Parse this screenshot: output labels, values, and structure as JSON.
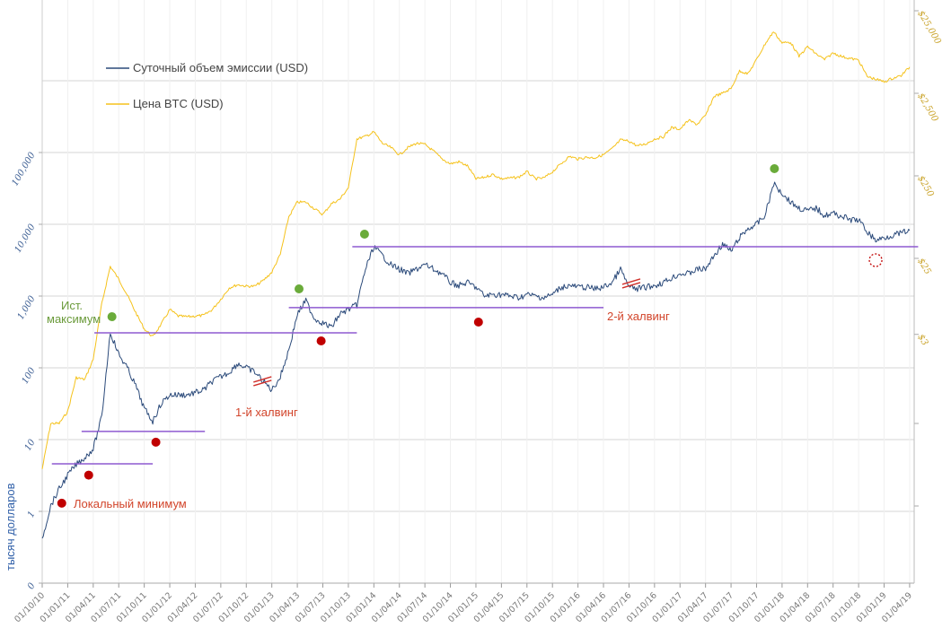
{
  "chart_data": {
    "type": "line",
    "title": "",
    "ylabel": "тысяч долларов",
    "y_left_scale": "log",
    "y_right_scale": "log",
    "y_left_ticks": [
      {
        "value": 0.1,
        "label": "0"
      },
      {
        "value": 1,
        "label": "1"
      },
      {
        "value": 10,
        "label": "10"
      },
      {
        "value": 100,
        "label": "100"
      },
      {
        "value": 1000,
        "label": "1,000"
      },
      {
        "value": 10000,
        "label": "10,000"
      },
      {
        "value": 100000,
        "label": "100,000"
      }
    ],
    "y_right_ticks": [
      {
        "value": 25000,
        "label": "$25,000"
      },
      {
        "value": 2500,
        "label": "$2,500"
      },
      {
        "value": 250,
        "label": "$250"
      },
      {
        "value": 25,
        "label": "$25"
      },
      {
        "value": 3,
        "label": "$3"
      },
      {
        "value": 0.25,
        "label": ""
      },
      {
        "value": 0.025,
        "label": ""
      }
    ],
    "x_ticks": [
      "01/10/10",
      "01/01/11",
      "01/04/11",
      "01/07/11",
      "01/10/11",
      "01/01/12",
      "01/04/12",
      "01/07/12",
      "01/10/12",
      "01/01/13",
      "01/04/13",
      "01/07/13",
      "01/10/13",
      "01/01/14",
      "01/04/14",
      "01/07/14",
      "01/10/14",
      "01/01/15",
      "01/04/15",
      "01/07/15",
      "01/10/15",
      "01/01/16",
      "01/04/16",
      "01/07/16",
      "01/10/16",
      "01/01/17",
      "01/04/17",
      "01/07/17",
      "01/10/17",
      "01/01/18",
      "01/04/18",
      "01/07/18",
      "01/10/18",
      "01/01/19",
      "01/04/19"
    ],
    "x_start": "2010-10",
    "legend": {
      "placement": "top-left",
      "items": [
        {
          "name": "Суточный объем эмиссии (USD)",
          "color": "#2b4a7a"
        },
        {
          "name": "Цена BTC (USD)",
          "color": "#f5c21b"
        }
      ]
    },
    "series": [
      {
        "name": "Суточный объем эмиссии (USD)",
        "axis": "left",
        "unit": "thousand USD",
        "color": "#2b4a7a",
        "values": [
          0.42,
          1.2,
          2.05,
          3.2,
          4.5,
          5.6,
          7.5,
          20.5,
          316,
          154,
          100,
          56,
          27,
          18,
          32,
          42,
          42,
          42,
          45,
          49,
          65,
          75,
          87,
          115,
          100,
          87,
          65,
          49,
          75,
          178,
          560,
          866,
          487,
          422,
          365,
          560,
          650,
          750,
          2370,
          4870,
          3650,
          2740,
          2370,
          2050,
          2370,
          2740,
          2370,
          2050,
          1540,
          1400,
          1540,
          1330,
          1000,
          1050,
          1050,
          1000,
          950,
          1050,
          1000,
          950,
          1050,
          1330,
          1400,
          1330,
          1330,
          1260,
          1330,
          1540,
          2370,
          1330,
          1260,
          1330,
          1400,
          1540,
          1780,
          2050,
          2050,
          2370,
          2370,
          3650,
          5300,
          4200,
          6500,
          8660,
          10000,
          13300,
          36500,
          27400,
          20500,
          16800,
          15400,
          16800,
          13300,
          14200,
          13000,
          11500,
          11500,
          7940,
          5960,
          6500,
          7080,
          7500,
          8200
        ]
      },
      {
        "name": "Цена BTC (USD)",
        "axis": "right",
        "unit": "USD",
        "color": "#f5c21b",
        "values": [
          0.07,
          0.25,
          0.25,
          0.35,
          0.9,
          0.85,
          1.5,
          7,
          20,
          14,
          9,
          5.5,
          3.5,
          2.8,
          4,
          6,
          5,
          4.9,
          5,
          5.1,
          6,
          8,
          11,
          12,
          11.5,
          11.5,
          13.5,
          17,
          28,
          80,
          120,
          120,
          100,
          85,
          115,
          130,
          180,
          700,
          750,
          850,
          620,
          550,
          450,
          550,
          620,
          600,
          500,
          400,
          350,
          370,
          330,
          230,
          240,
          260,
          230,
          235,
          240,
          280,
          230,
          235,
          280,
          350,
          430,
          400,
          420,
          415,
          450,
          530,
          680,
          660,
          575,
          610,
          700,
          740,
          960,
          920,
          1180,
          1050,
          1340,
          2300,
          2500,
          2850,
          4700,
          4300,
          6400,
          9900,
          14000,
          10200,
          10400,
          7000,
          9200,
          7500,
          6400,
          7700,
          7000,
          6600,
          6300,
          4000,
          3700,
          3450,
          3800,
          4100,
          5200
        ]
      }
    ],
    "support_lines": [
      {
        "start": "2010-11-05",
        "end": "2011-11-01",
        "value": 4.6
      },
      {
        "start": "2011-02-20",
        "end": "2012-05-05",
        "value": 13
      },
      {
        "start": "2011-04-05",
        "end": "2013-11-01",
        "value": 307
      },
      {
        "start": "2013-03-01",
        "end": "2016-04-01",
        "value": 690
      },
      {
        "start": "2013-10-15",
        "end": "2019-05-01",
        "value": 4870
      }
    ],
    "support_color": "#8e5ad0",
    "local_minima": {
      "color": "#c00000",
      "points": [
        {
          "date": "2010-12-10",
          "value": 1.3
        },
        {
          "date": "2011-03-15",
          "value": 3.2
        },
        {
          "date": "2011-11-12",
          "value": 9.2
        },
        {
          "date": "2013-06-25",
          "value": 237
        },
        {
          "date": "2015-01-10",
          "value": 434
        }
      ],
      "projected": {
        "date": "2018-12-01",
        "value": 3160
      }
    },
    "historical_maxima": {
      "color": "#6aab3a",
      "points": [
        {
          "date": "2011-06-07",
          "value": 516
        },
        {
          "date": "2013-04-07",
          "value": 1259
        },
        {
          "date": "2013-11-28",
          "value": 7290
        },
        {
          "date": "2017-12-04",
          "value": 59600
        }
      ]
    },
    "halvings": [
      {
        "date": "2012-11-28",
        "value": 65,
        "label": "1-й халвинг"
      },
      {
        "date": "2016-07-09",
        "value": 1500,
        "label": "2-й халвинг"
      }
    ],
    "annotations": {
      "local_min_label": "Локальный минимум",
      "hist_max_label_line1": "Ист.",
      "hist_max_label_line2": "максимум"
    },
    "grid": true
  }
}
